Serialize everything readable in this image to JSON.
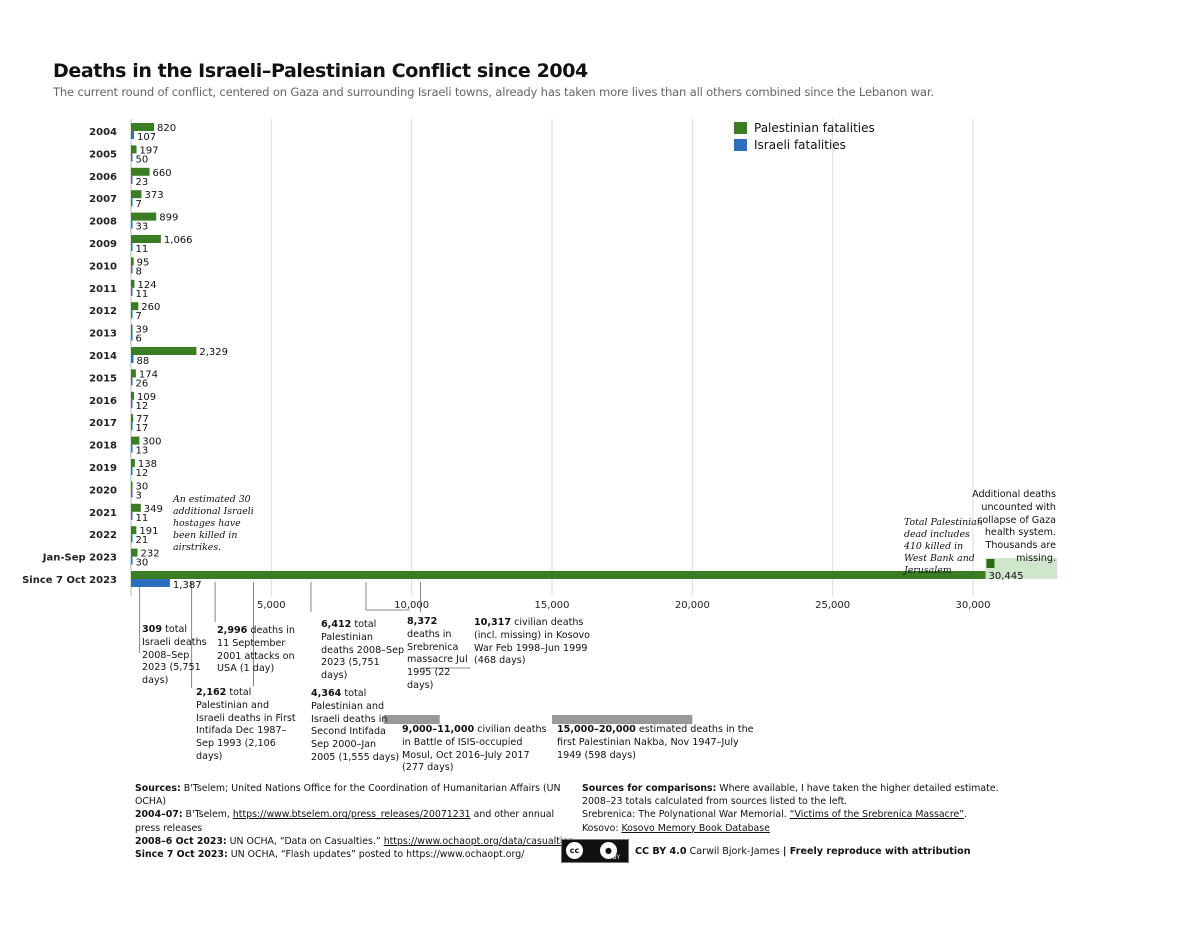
{
  "title": "Deaths in the Israeli–Palestinian Conflict since 2004",
  "subtitle": "The current round of conflict, centered on Gaza and surrounding Israeli towns, already has taken more lives than all others combined since the Lebanon war.",
  "colors": {
    "palestinian": "#3a7d22",
    "israeli": "#2e6fbd",
    "comparison": "#999999",
    "uncounted": "#cfe5cc",
    "gridline": "#dddddd"
  },
  "legend": {
    "palestinian": "Palestinian fatalities",
    "israeli": "Israeli fatalities"
  },
  "chart_data": {
    "type": "bar",
    "orientation": "horizontal",
    "title": "Deaths in the Israeli–Palestinian Conflict since 2004",
    "xlim": [
      0,
      33000
    ],
    "xticks": [
      5000,
      10000,
      15000,
      20000,
      25000,
      30000
    ],
    "xtick_labels": [
      "5,000",
      "10,000",
      "15,000",
      "20,000",
      "25,000",
      "30,000"
    ],
    "categories": [
      "2004",
      "2005",
      "2006",
      "2007",
      "2008",
      "2009",
      "2010",
      "2011",
      "2012",
      "2013",
      "2014",
      "2015",
      "2016",
      "2017",
      "2018",
      "2019",
      "2020",
      "2021",
      "2022",
      "Jan-Sep 2023",
      "Since 7 Oct 2023"
    ],
    "series": [
      {
        "name": "Palestinian fatalities",
        "values": [
          820,
          197,
          660,
          373,
          899,
          1066,
          95,
          124,
          260,
          39,
          2329,
          174,
          109,
          77,
          300,
          138,
          30,
          349,
          191,
          232,
          30445
        ],
        "labels": [
          "820",
          "197",
          "660",
          "373",
          "899",
          "1,066",
          "95",
          "124",
          "260",
          "39",
          "2,329",
          "174",
          "109",
          "77",
          "300",
          "138",
          "30",
          "349",
          "191",
          "232",
          "30,445"
        ]
      },
      {
        "name": "Israeli fatalities",
        "values": [
          107,
          50,
          23,
          7,
          33,
          11,
          8,
          11,
          7,
          6,
          88,
          26,
          12,
          17,
          13,
          12,
          3,
          11,
          21,
          30,
          1387
        ],
        "labels": [
          "107",
          "50",
          "23",
          "7",
          "33",
          "11",
          "8",
          "11",
          "7",
          "6",
          "88",
          "26",
          "12",
          "17",
          "13",
          "12",
          "3",
          "11",
          "21",
          "30",
          "1,387"
        ]
      }
    ],
    "uncounted_extension": {
      "from": 30445,
      "to": 33000
    },
    "comparison_ranges": [
      {
        "label": "9,000–11,000 Battle of ISIS-occupied Mosul",
        "min": 9000,
        "max": 11000
      },
      {
        "label": "15,000–20,000 first Palestinian Nakba",
        "min": 15000,
        "max": 20000
      }
    ],
    "comparison_markers": [
      {
        "label": "309 total Israeli deaths 2008–Sep 2023",
        "value": 309
      },
      {
        "label": "2,162 First Intifada",
        "value": 2162
      },
      {
        "label": "2,996 11 September 2001 attacks",
        "value": 2996
      },
      {
        "label": "4,364 Second Intifada",
        "value": 4364
      },
      {
        "label": "6,412 total Palestinian deaths 2008–Sep 2023",
        "value": 6412
      },
      {
        "label": "8,372 Srebrenica massacre",
        "value": 8372
      },
      {
        "label": "10,317 Kosovo War",
        "value": 10317
      }
    ]
  },
  "comparisons": {
    "israeli_total": {
      "num": "309",
      "text": " total Israeli deaths 2008–Sep 2023 (5,751 days)"
    },
    "first_intifada": {
      "num": "2,162",
      "text": " total Palestinian and Israeli deaths in First Intifada Dec 1987–Sep 1993 (2,106 days)"
    },
    "sept11": {
      "num": "2,996",
      "text": " deaths in 11 September 2001 attacks on USA (1 day)"
    },
    "second_intifada": {
      "num": "4,364",
      "text": " total Palestinian and Israeli deaths in Second Intifada Sep 2000–Jan 2005 (1,555 days)"
    },
    "palestinian_total": {
      "num": "6,412",
      "text": " total Palestinian deaths 2008–Sep 2023 (5,751 days)"
    },
    "srebrenica": {
      "num": "8,372",
      "text": " deaths in Srebrenica massacre Jul 1995 (22 days)"
    },
    "kosovo": {
      "num": "10,317",
      "text": " civilian deaths (incl. missing) in Kosovo War Feb 1998–Jun 1999 (468 days)"
    },
    "mosul": {
      "num": "9,000–11,000",
      "text": " civilian deaths in Battle of ISIS-occupied Mosul, Oct 2016–July 2017 (277 days)"
    },
    "nakba": {
      "num": "15,000–20,000",
      "text": " estimated deaths in the first Palestinian Nakba, Nov 1947–July 1949 (598 days)"
    }
  },
  "notes": {
    "hostages": "An estimated 30 additional Israeli hostages have been killed in airstrikes.",
    "west_bank": "Total Palestinian dead includes 410 killed in West Bank and Jerusalem",
    "additional": "Additional deaths uncounted with collapse of Gaza health system. Thousands are missing."
  },
  "sources": {
    "line1_label": "Sources:",
    "line1_text": " B'Tselem;  United Nations Office for the Coordination of Humanitarian Affairs (UN OCHA)",
    "line2_label": "2004–07:",
    "line2_text": " B'Tselem, ",
    "line2_link": "https://www.btselem.org/press_releases/20071231",
    "line2_tail": " and other annual press releases",
    "line3_label": "2008–6 Oct 2023:",
    "line3_text": " UN OCHA, “Data on Casualties.” ",
    "line3_link": "https://www.ochaopt.org/data/casualties",
    "line4_label": "Since 7 Oct 2023:",
    "line4_text": " UN OCHA, “Flash updates” posted to https://www.ochaopt.org/"
  },
  "comparison_sources": {
    "line1_label": "Sources for comparisons:",
    "line1_text": " Where available, I have taken the higher detailed estimate.",
    "line2": "2008–23 totals calculated from sources listed to the left.",
    "line3_text": "Srebrenica: The Polynational War Memorial. ",
    "line3_link": "“Victims of the Srebrenica Massacre”",
    "line3_tail": ".",
    "line4_text": "Kosovo: ",
    "line4_link": "Kosovo Memory Book Database"
  },
  "license": {
    "badge_cc": "cc",
    "badge_by": "BY",
    "label": "CC BY 4.0",
    "author": " Carwil Bjork-James ",
    "sep": "|",
    "tail": " Freely reproduce with attribution"
  }
}
